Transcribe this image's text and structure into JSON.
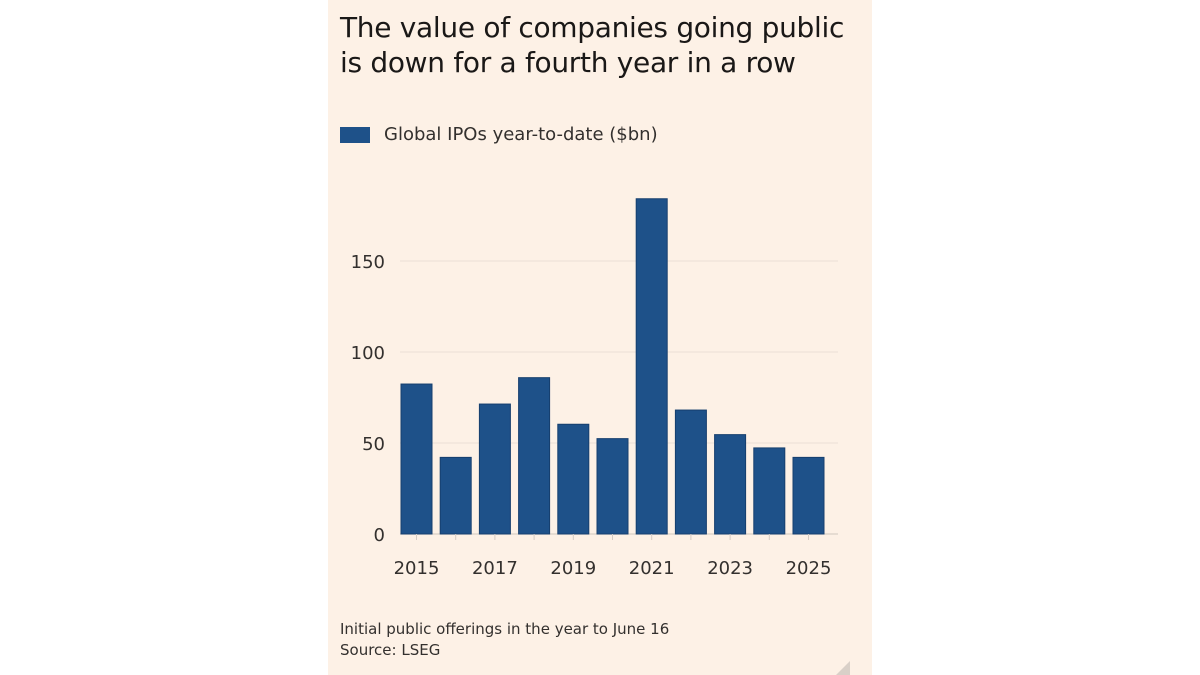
{
  "chart_data": {
    "type": "bar",
    "title": "The value of companies going public is down for a fourth year in a row",
    "legend": [
      {
        "name": "Global IPOs year-to-date ($bn)",
        "color": "#1e5189"
      }
    ],
    "legend_placement": "top-left",
    "categories": [
      "2015",
      "2016",
      "2017",
      "2018",
      "2019",
      "2020",
      "2021",
      "2022",
      "2023",
      "2024",
      "2025"
    ],
    "series": [
      {
        "name": "Global IPOs year-to-date ($bn)",
        "values": [
          82.4,
          42.1,
          71.4,
          85.9,
          60.3,
          52.4,
          184.2,
          68.1,
          54.6,
          47.3,
          42.1
        ]
      }
    ],
    "x_tick_labels": [
      "2015",
      "2017",
      "2019",
      "2021",
      "2023",
      "2025"
    ],
    "y_ticks": [
      0,
      50,
      100,
      150
    ],
    "ylim": [
      0,
      190
    ],
    "grid": "horizontal",
    "xlabel": "",
    "ylabel": "",
    "footnote": "Initial public offerings in the year to June 16",
    "source": "Source: LSEG",
    "colors": {
      "bar": "#1e5189",
      "background": "#fdf1e6",
      "grid": "#eadfd6",
      "text": "#33302e"
    }
  }
}
